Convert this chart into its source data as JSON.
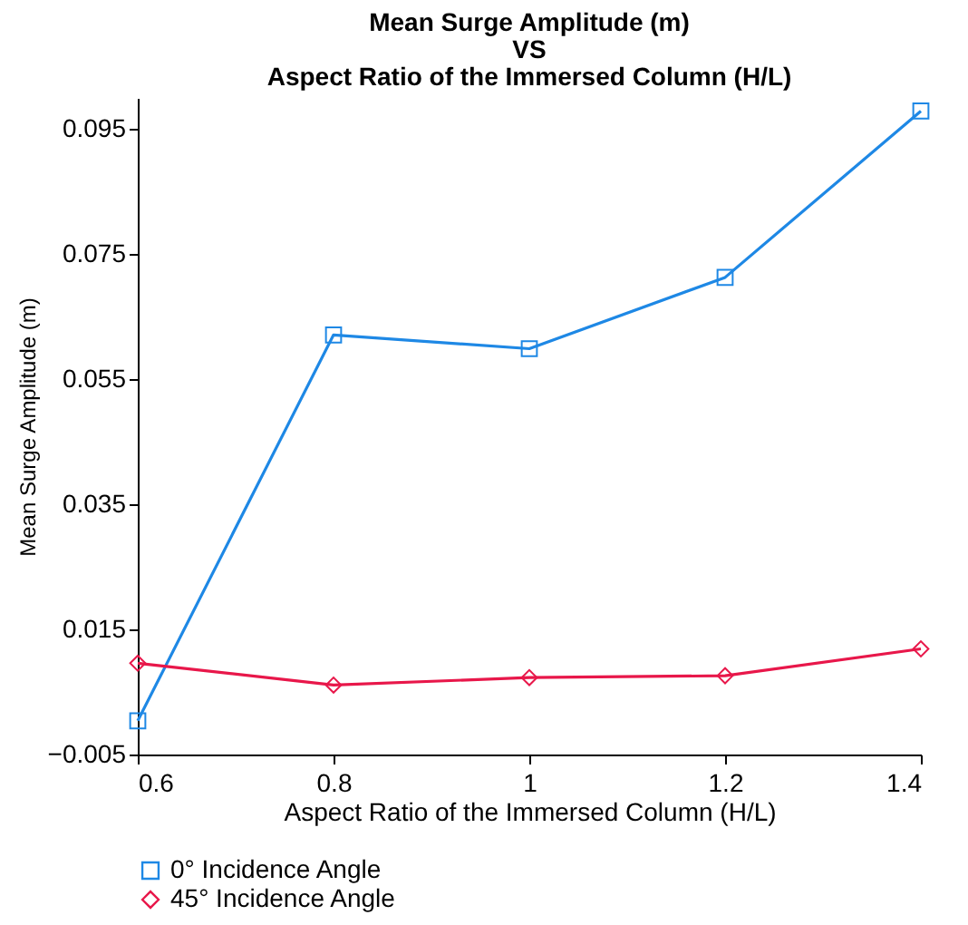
{
  "chart_data": {
    "type": "line",
    "title": "Mean Surge Amplitude (m)\nVS\nAspect Ratio of the Immersed Column (H/L)",
    "xlabel": "Aspect Ratio of the Immersed Column (H/L)",
    "ylabel": "Mean Surge Amplitude (m)",
    "x": [
      0.6,
      0.8,
      1,
      1.2,
      1.4
    ],
    "series": [
      {
        "name": "0° Incidence Angle",
        "color": "#1e88e5",
        "marker": "square",
        "values": [
          0.0004,
          0.0621,
          0.0599,
          0.0713,
          0.0979
        ]
      },
      {
        "name": "45° Incidence Angle",
        "color": "#e8174a",
        "marker": "diamond",
        "values": [
          0.0096,
          0.0061,
          0.0073,
          0.0076,
          0.0119
        ]
      }
    ],
    "xlim": [
      0.6,
      1.4
    ],
    "xticks": [
      0.6,
      0.8,
      1,
      1.2,
      1.4
    ],
    "ylim": [
      -0.005,
      0.1
    ],
    "yticks": [
      -0.005,
      0.015,
      0.035,
      0.055,
      0.075,
      0.095
    ],
    "grid": false,
    "legend": "bottom",
    "line_style": "solid"
  }
}
